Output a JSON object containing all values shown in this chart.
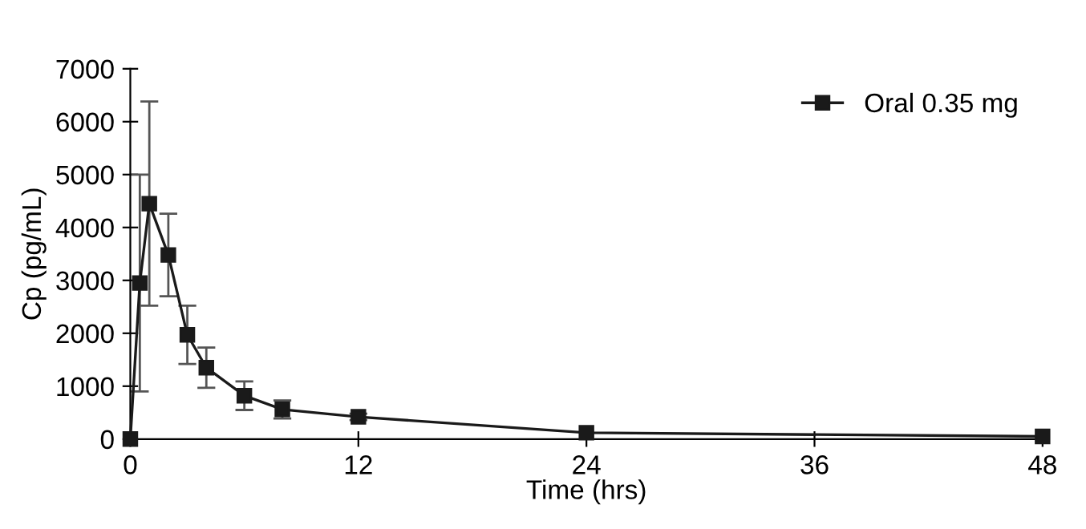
{
  "chart_data": {
    "type": "line",
    "xlabel": "Time (hrs)",
    "ylabel": "Cp (pg/mL)",
    "x": [
      0,
      0.5,
      1,
      2,
      3,
      4,
      6,
      8,
      12,
      24,
      48
    ],
    "series": [
      {
        "name": "Oral 0.35 mg",
        "color": "#1a1a1a",
        "values": [
          0,
          2950,
          4450,
          3480,
          1970,
          1350,
          820,
          560,
          420,
          120,
          50
        ],
        "errors": [
          null,
          2050,
          1930,
          780,
          550,
          380,
          270,
          170,
          60,
          null,
          null
        ]
      }
    ],
    "xlim": [
      0,
      48
    ],
    "ylim": [
      0,
      7000
    ],
    "xticks": [
      0,
      12,
      24,
      36,
      48
    ],
    "yticks": [
      0,
      1000,
      2000,
      3000,
      4000,
      5000,
      6000,
      7000
    ],
    "marker": "square",
    "line_style": "solid",
    "legend": "top right",
    "grid": false
  }
}
